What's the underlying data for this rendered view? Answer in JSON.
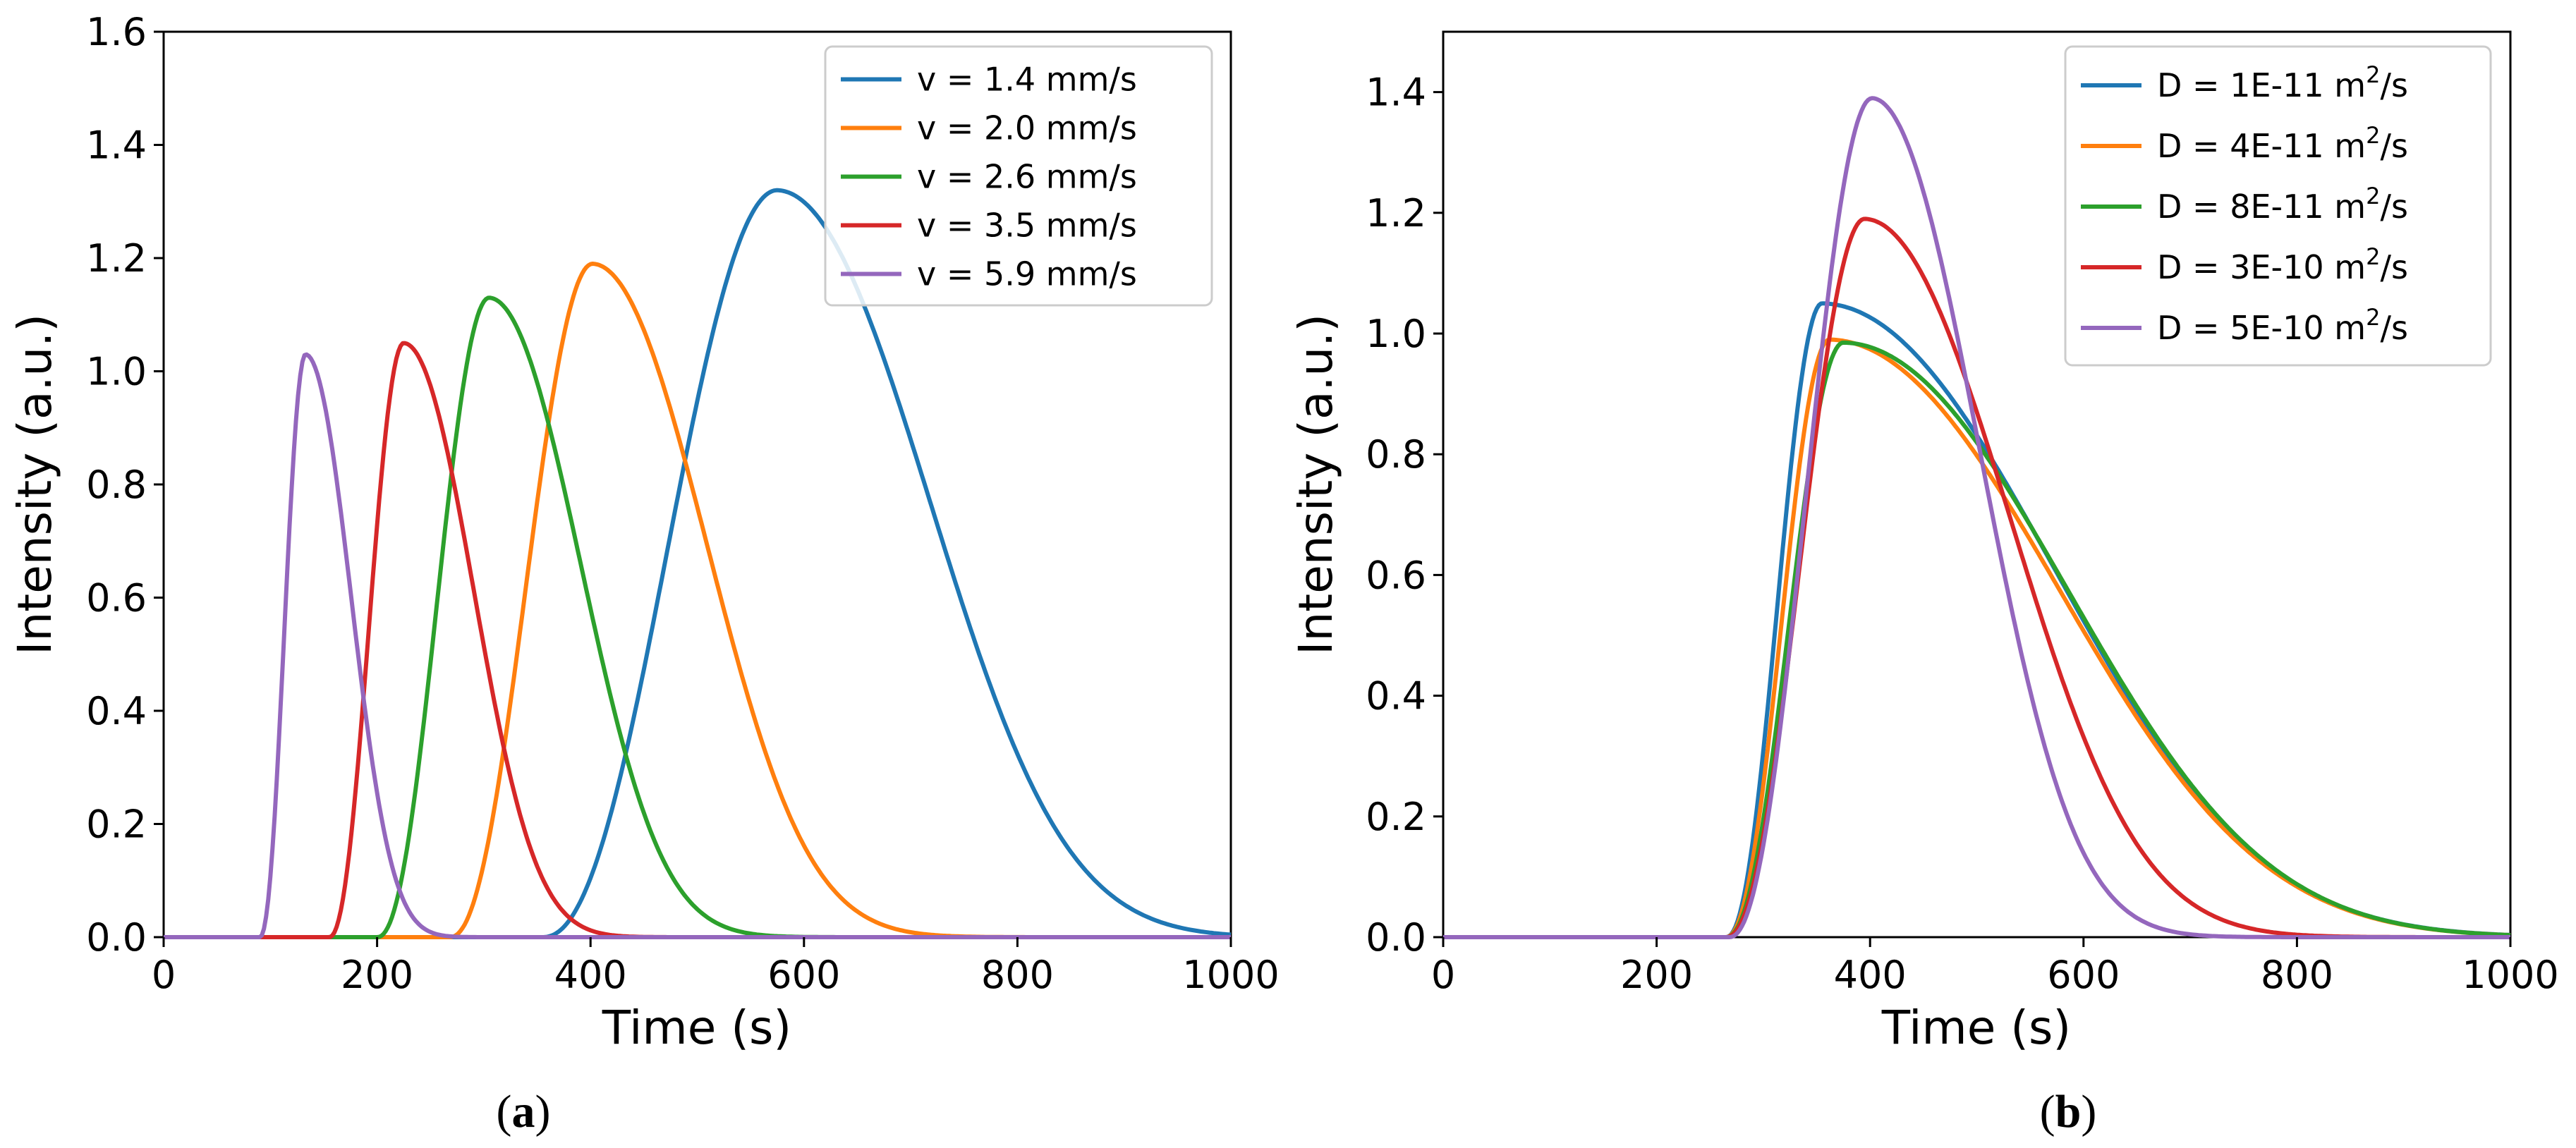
{
  "chart_data": [
    {
      "type": "line",
      "panel_label": "a",
      "xlabel": "Time (s)",
      "ylabel": "Intensity (a.u.)",
      "xlim": [
        0,
        1000
      ],
      "ylim": [
        0,
        1.6
      ],
      "xticks": [
        "0",
        "200",
        "400",
        "600",
        "800",
        "1000"
      ],
      "yticks": [
        "0.0",
        "0.2",
        "0.4",
        "0.6",
        "0.8",
        "1.0",
        "1.2",
        "1.4",
        "1.6"
      ],
      "legend_position": "top-right",
      "series": [
        {
          "name": "v = 1.4 mm/s",
          "color": "#1f77b4",
          "onset": 355,
          "peak_time": 575,
          "peak": 1.32,
          "end": 1000
        },
        {
          "name": "v = 2.0 mm/s",
          "color": "#ff7f0e",
          "onset": 268,
          "peak_time": 402,
          "peak": 1.19,
          "end": 720
        },
        {
          "name": "v = 2.6 mm/s",
          "color": "#2ca02c",
          "onset": 200,
          "peak_time": 305,
          "peak": 1.13,
          "end": 560
        },
        {
          "name": "v = 3.5 mm/s",
          "color": "#d62728",
          "onset": 155,
          "peak_time": 225,
          "peak": 1.05,
          "end": 420
        },
        {
          "name": "v = 5.9 mm/s",
          "color": "#9467bd",
          "onset": 90,
          "peak_time": 133,
          "peak": 1.03,
          "end": 260
        }
      ]
    },
    {
      "type": "line",
      "panel_label": "b",
      "xlabel": "Time (s)",
      "ylabel": "Intensity (a.u.)",
      "xlim": [
        0,
        1000
      ],
      "ylim": [
        0,
        1.5
      ],
      "xticks": [
        "0",
        "200",
        "400",
        "600",
        "800",
        "1000"
      ],
      "yticks": [
        "0.0",
        "0.2",
        "0.4",
        "0.6",
        "0.8",
        "1.0",
        "1.2",
        "1.4"
      ],
      "legend_position": "top-right",
      "series": [
        {
          "name": "D = 1E-11 m²/s",
          "label_main": "D = 1E-11 m",
          "label_sup": "2",
          "label_tail": "/s",
          "color": "#1f77b4",
          "onset": 265,
          "peak_time": 355,
          "peak": 1.05,
          "end": 1000
        },
        {
          "name": "D = 4E-11 m²/s",
          "label_main": "D = 4E-11 m",
          "label_sup": "2",
          "label_tail": "/s",
          "color": "#ff7f0e",
          "onset": 265,
          "peak_time": 362,
          "peak": 0.99,
          "end": 1000
        },
        {
          "name": "D = 8E-11 m²/s",
          "label_main": "D = 8E-11 m",
          "label_sup": "2",
          "label_tail": "/s",
          "color": "#2ca02c",
          "onset": 265,
          "peak_time": 375,
          "peak": 0.985,
          "end": 1000
        },
        {
          "name": "D = 3E-10 m²/s",
          "label_main": "D = 3E-10 m",
          "label_sup": "2",
          "label_tail": "/s",
          "color": "#d62728",
          "onset": 265,
          "peak_time": 395,
          "peak": 1.19,
          "end": 800
        },
        {
          "name": "D = 5E-10 m²/s",
          "label_main": "D = 5E-10 m",
          "label_sup": "2",
          "label_tail": "/s",
          "color": "#9467bd",
          "onset": 268,
          "peak_time": 402,
          "peak": 1.39,
          "end": 700
        }
      ]
    }
  ]
}
